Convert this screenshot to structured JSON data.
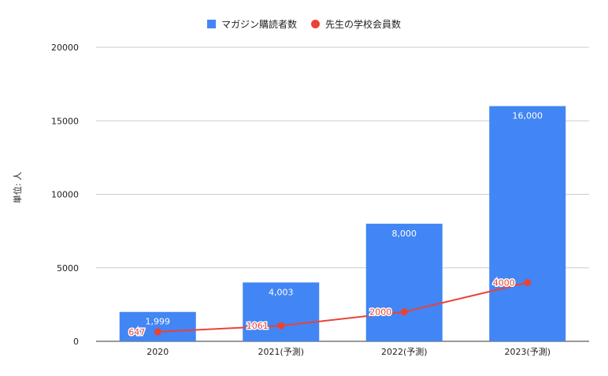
{
  "chart_data": {
    "type": "bar",
    "categories": [
      "2020",
      "2021(予測)",
      "2022(予測)",
      "2023(予測)"
    ],
    "series": [
      {
        "name": "マガジン購読者数",
        "type": "bar",
        "values": [
          1999,
          4003,
          8000,
          16000
        ],
        "labels": [
          "1,999",
          "4,003",
          "8,000",
          "16,000"
        ],
        "color": "#4285F4"
      },
      {
        "name": "先生の学校会員数",
        "type": "line",
        "values": [
          647,
          1061,
          2000,
          4000
        ],
        "labels": [
          "647",
          "1061",
          "2000",
          "4000"
        ],
        "color": "#EA4335"
      }
    ],
    "ylabel": "単位: 人",
    "ylim": [
      0,
      20000
    ],
    "yticks": [
      "0",
      "5000",
      "10000",
      "15000",
      "20000"
    ],
    "grid": true,
    "legend_position": "top"
  }
}
